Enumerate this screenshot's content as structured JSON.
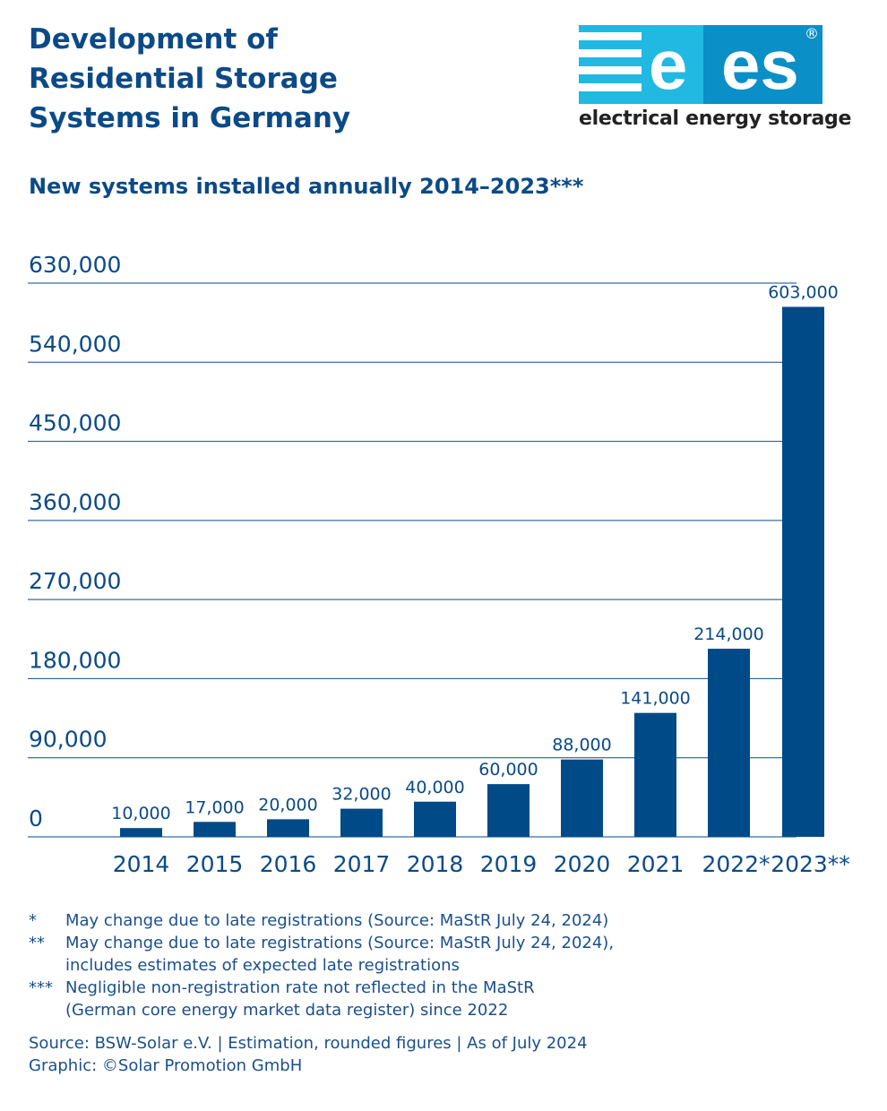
{
  "title_lines": [
    "Development of",
    "Residential Storage",
    "Systems in Germany"
  ],
  "logo": {
    "letters": "ees",
    "registered": "®",
    "tagline": "electrical energy storage"
  },
  "colors": {
    "bar": "#004a87",
    "text": "#0b4a87",
    "logo_light": "#21b9e2",
    "logo_dark": "#0a8fc6"
  },
  "chart_data": {
    "type": "bar",
    "title": "New systems installed annually 2014–2023***",
    "categories": [
      "2014",
      "2015",
      "2016",
      "2017",
      "2018",
      "2019",
      "2020",
      "2021",
      "2022*",
      "2023**"
    ],
    "values": [
      10000,
      17000,
      20000,
      32000,
      40000,
      60000,
      88000,
      141000,
      214000,
      603000
    ],
    "value_labels": [
      "10,000",
      "17,000",
      "20,000",
      "32,000",
      "40,000",
      "60,000",
      "88,000",
      "141,000",
      "214,000",
      "603,000"
    ],
    "ylim": [
      0,
      630000
    ],
    "yticks": [
      0,
      90000,
      180000,
      270000,
      360000,
      450000,
      540000,
      630000
    ],
    "ytick_labels": [
      "0",
      "90,000",
      "180,000",
      "270,000",
      "360,000",
      "450,000",
      "540,000",
      "630,000"
    ],
    "grid": true,
    "xlabel": "",
    "ylabel": ""
  },
  "footnotes": [
    {
      "mark": "*",
      "lines": [
        "May change due to late registrations (Source: MaStR July 24, 2024)"
      ]
    },
    {
      "mark": "**",
      "lines": [
        "May change due to late registrations (Source: MaStR July 24, 2024),",
        "includes estimates of expected late registrations"
      ]
    },
    {
      "mark": "***",
      "lines": [
        "Negligible non-registration rate not reflected in the MaStR",
        "(German core energy market data register) since 2022"
      ]
    }
  ],
  "source_lines": [
    "Source: BSW-Solar e.V. | Estimation, rounded figures | As of July 2024",
    "Graphic: ©Solar Promotion GmbH"
  ]
}
